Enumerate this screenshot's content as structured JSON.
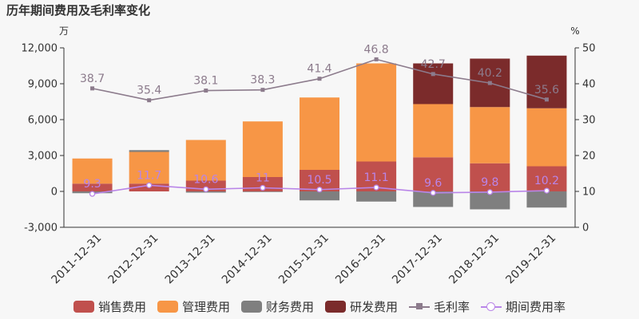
{
  "title": "历年期间费用及毛利率变化",
  "chart_data": {
    "type": "bar",
    "title": "历年期间费用及毛利率变化",
    "left_unit": "万",
    "right_unit": "%",
    "categories": [
      "2011-12-31",
      "2012-12-31",
      "2013-12-31",
      "2014-12-31",
      "2015-12-31",
      "2016-12-31",
      "2017-12-31",
      "2018-12-31",
      "2019-12-31"
    ],
    "y_left": {
      "min": -3000,
      "max": 12000,
      "ticks": [
        -3000,
        0,
        3000,
        6000,
        9000,
        12000
      ],
      "tick_labels": [
        "-3,000",
        "0",
        "3,000",
        "6,000",
        "9,000",
        "12,000"
      ]
    },
    "y_right": {
      "min": 0,
      "max": 50,
      "ticks": [
        0,
        10,
        20,
        30,
        40,
        50
      ],
      "tick_labels": [
        "0",
        "10",
        "20",
        "30",
        "40",
        "50"
      ]
    },
    "stacked": true,
    "series": [
      {
        "name": "销售费用",
        "kind": "bar",
        "axis": "left",
        "color": "#c0504d",
        "values": [
          650,
          650,
          900,
          1200,
          1800,
          2500,
          2850,
          2350,
          2100
        ]
      },
      {
        "name": "管理费用",
        "kind": "bar",
        "axis": "left",
        "color": "#f79646",
        "values": [
          2100,
          2650,
          3400,
          4650,
          6050,
          8200,
          4450,
          4700,
          4850
        ]
      },
      {
        "name": "财务费用",
        "kind": "bar",
        "axis": "left",
        "color": "#7f7f7f",
        "values": [
          -150,
          150,
          -100,
          -50,
          -750,
          -850,
          -1300,
          -1500,
          -1350
        ]
      },
      {
        "name": "研发费用",
        "kind": "bar",
        "axis": "left",
        "color": "#7b2b2b",
        "values": [
          0,
          0,
          0,
          0,
          0,
          0,
          3400,
          4050,
          4400
        ]
      },
      {
        "name": "毛利率",
        "kind": "line",
        "axis": "right",
        "color": "#8c7b8c",
        "marker": "square",
        "values": [
          38.7,
          35.4,
          38.1,
          38.3,
          41.4,
          46.8,
          42.7,
          40.2,
          35.6
        ],
        "labels": [
          "38.7",
          "35.4",
          "38.1",
          "38.3",
          "41.4",
          "46.8",
          "42.7",
          "40.2",
          "35.6"
        ]
      },
      {
        "name": "期间费用率",
        "kind": "line",
        "axis": "right",
        "color": "#b985e8",
        "marker": "circle",
        "values": [
          9.3,
          11.7,
          10.6,
          11.0,
          10.5,
          11.1,
          9.6,
          9.8,
          10.2
        ],
        "labels": [
          "9.3",
          "11.7",
          "10.6",
          "11",
          "10.5",
          "11.1",
          "9.6",
          "9.8",
          "10.2"
        ]
      }
    ],
    "grid": false,
    "legend": "bottom"
  }
}
